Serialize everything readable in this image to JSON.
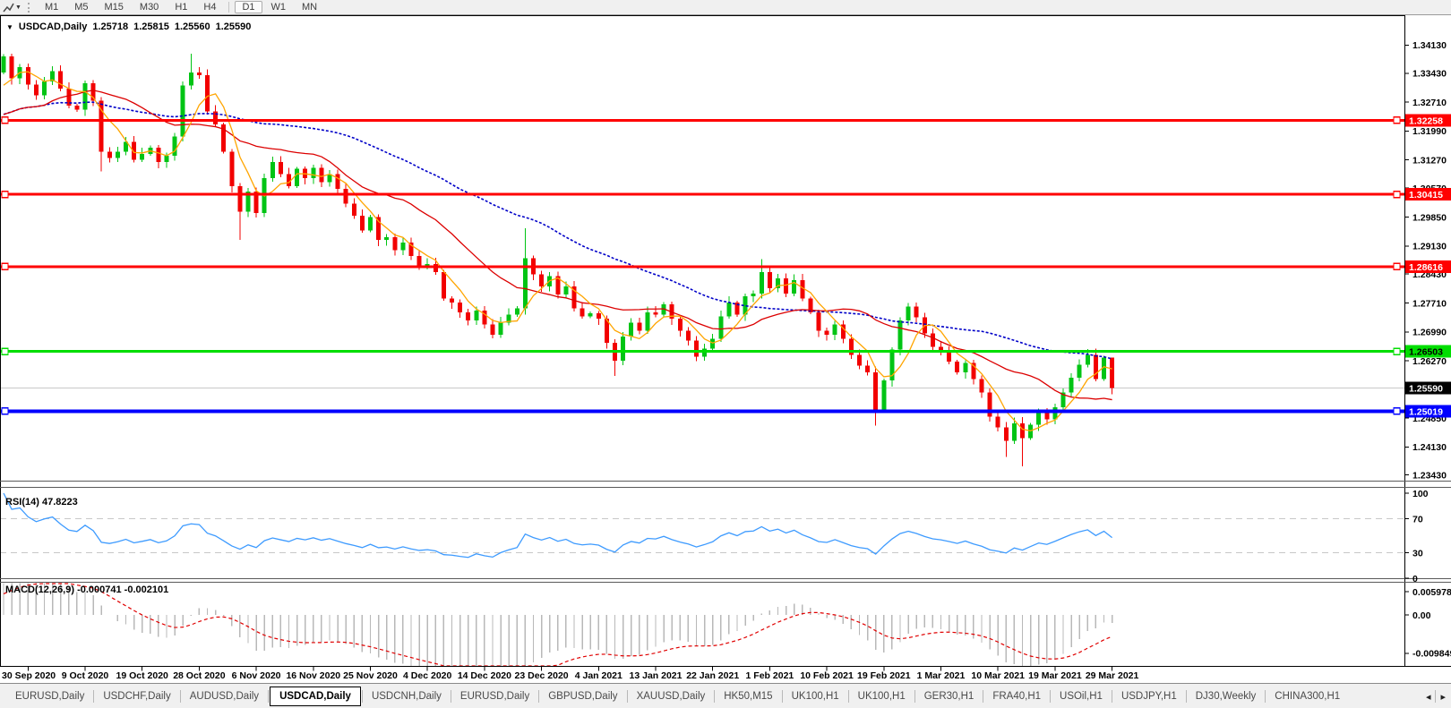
{
  "toolbar": {
    "timeframes": [
      "M1",
      "M5",
      "M15",
      "M30",
      "H1",
      "H4",
      "D1",
      "W1",
      "MN"
    ],
    "active_timeframe": "D1"
  },
  "chart": {
    "title_symbol": "USDCAD,Daily",
    "ohlc": {
      "open": "1.25718",
      "high": "1.25815",
      "low": "1.25560",
      "close": "1.25590"
    },
    "price_axis": {
      "ticks": [
        "1.34130",
        "1.33430",
        "1.32710",
        "1.31990",
        "1.31270",
        "1.30570",
        "1.29850",
        "1.29130",
        "1.28430",
        "1.27710",
        "1.26990",
        "1.26270",
        "1.24850",
        "1.24130",
        "1.23430"
      ]
    },
    "levels": [
      {
        "price": 1.32258,
        "label": "1.32258",
        "color": "#FF0000",
        "text": "#FFFFFF",
        "w": 3
      },
      {
        "price": 1.30415,
        "label": "1.30415",
        "color": "#FF0000",
        "text": "#FFFFFF",
        "w": 3
      },
      {
        "price": 1.28616,
        "label": "1.28616",
        "color": "#FF0000",
        "text": "#FFFFFF",
        "w": 3
      },
      {
        "price": 1.26503,
        "label": "1.26503",
        "color": "#00DE00",
        "text": "#000000",
        "w": 3
      },
      {
        "price": 1.25019,
        "label": "1.25019",
        "color": "#0000FF",
        "text": "#FFFFFF",
        "w": 4
      }
    ],
    "current_price": {
      "price": 1.2559,
      "label": "1.25590"
    },
    "candles": {
      "visible_start": 12,
      "closes": [
        1.315,
        1.3162,
        1.3175,
        1.3188,
        1.32,
        1.3215,
        1.3228,
        1.3242,
        1.3255,
        1.3275,
        1.3305,
        1.3345,
        1.3385,
        1.333,
        1.3358,
        1.3315,
        1.3288,
        1.3322,
        1.3348,
        1.3305,
        1.3262,
        1.3252,
        1.3318,
        1.3275,
        1.3148,
        1.3132,
        1.3148,
        1.3172,
        1.3128,
        1.3142,
        1.3158,
        1.3122,
        1.3138,
        1.3185,
        1.3312,
        1.3345,
        1.3338,
        1.3248,
        1.3215,
        1.3148,
        1.3062,
        1.2998,
        1.3048,
        1.2995,
        1.3082,
        1.3122,
        1.3092,
        1.3062,
        1.3105,
        1.3082,
        1.3108,
        1.3072,
        1.3092,
        1.3055,
        1.3018,
        1.2988,
        1.2952,
        1.2985,
        1.2928,
        1.2935,
        1.2902,
        1.2922,
        1.2888,
        1.2862,
        1.2868,
        1.2848,
        1.2782,
        1.2772,
        1.2748,
        1.2728,
        1.2752,
        1.2718,
        1.2692,
        1.2722,
        1.2742,
        1.2758,
        1.2882,
        1.2842,
        1.2812,
        1.2838,
        1.2792,
        1.2812,
        1.2758,
        1.2738,
        1.2745,
        1.2732,
        1.2672,
        1.2628,
        1.2688,
        1.2722,
        1.2702,
        1.2748,
        1.2742,
        1.2768,
        1.2732,
        1.2702,
        1.2678,
        1.2638,
        1.2658,
        1.2682,
        1.2738,
        1.2772,
        1.2742,
        1.2788,
        1.2795,
        1.2848,
        1.2808,
        1.2832,
        1.2795,
        1.2828,
        1.2782,
        1.2748,
        1.2702,
        1.2692,
        1.2718,
        1.2682,
        1.2642,
        1.2615,
        1.2598,
        1.2505,
        1.2578,
        1.2655,
        1.2728,
        1.2762,
        1.2735,
        1.2695,
        1.2662,
        1.2648,
        1.2625,
        1.2598,
        1.2622,
        1.2582,
        1.2548,
        1.2488,
        1.2462,
        1.2428,
        1.2472,
        1.2435,
        1.2468,
        1.2502,
        1.2482,
        1.2512,
        1.2548,
        1.2585,
        1.2618,
        1.2642,
        1.2582,
        1.2635,
        1.2559
      ],
      "wick_overrides": {
        "12": {
          "l": 1.3098
        },
        "23": {
          "h": 1.3392
        },
        "29": {
          "l": 1.2928
        },
        "64": {
          "h": 1.2957
        },
        "75": {
          "l": 1.259
        },
        "93": {
          "h": 1.288
        },
        "107": {
          "l": 1.2466
        },
        "123": {
          "l": 1.2388
        },
        "125": {
          "l": 1.2365
        },
        "136": {
          "h": 1.2582
        }
      }
    },
    "date_axis": {
      "tick_start": 3,
      "tick_step": 7,
      "labels": [
        "30 Sep 2020",
        "9 Oct 2020",
        "19 Oct 2020",
        "28 Oct 2020",
        "6 Nov 2020",
        "16 Nov 2020",
        "25 Nov 2020",
        "4 Dec 2020",
        "14 Dec 2020",
        "23 Dec 2020",
        "4 Jan 2021",
        "13 Jan 2021",
        "22 Jan 2021",
        "1 Feb 2021",
        "10 Feb 2021",
        "19 Feb 2021",
        "1 Mar 2021",
        "10 Mar 2021",
        "19 Mar 2021",
        "29 Mar 2021"
      ]
    }
  },
  "rsi": {
    "label": "RSI(14) 47.8223",
    "axis_ticks": [
      "100",
      "70",
      "30",
      "0"
    ],
    "levels": [
      70,
      30
    ]
  },
  "macd": {
    "label": "MACD(12,26,9) -0.000741 -0.002101",
    "axis_ticks": [
      "0.005978",
      "0.00",
      "-0.009849"
    ]
  },
  "tabs": {
    "items": [
      "EURUSD,Daily",
      "USDCHF,Daily",
      "AUDUSD,Daily",
      "USDCAD,Daily",
      "USDCNH,Daily",
      "EURUSD,Daily",
      "GBPUSD,Daily",
      "XAUUSD,Daily",
      "HK50,M15",
      "UK100,H1",
      "UK100,H1",
      "GER30,H1",
      "FRA40,H1",
      "USOil,H1",
      "USDJPY,H1",
      "DJ30,Weekly",
      "CHINA300,H1"
    ],
    "active_index": 3,
    "scroll_left": "◂",
    "scroll_right": "▸"
  },
  "colors": {
    "candle_up": "#00C414",
    "candle_down": "#F20000",
    "ma_fast": "#FFA500",
    "ma_mid": "#DC0000",
    "ma_slow": "#0000C8",
    "rsi_line": "#3E9BFF",
    "rsi_dash": "#C8C8C8",
    "macd_bar": "#B8B8B8",
    "macd_signal": "#E00000",
    "current_line": "#C8C8C8",
    "frame": "#000000",
    "separator": "#5A5A5A"
  }
}
